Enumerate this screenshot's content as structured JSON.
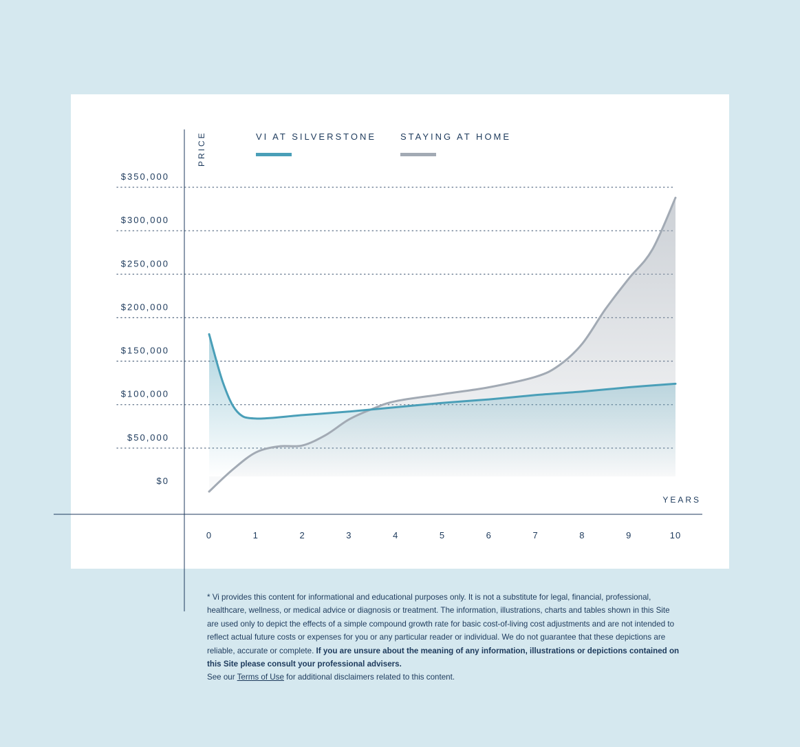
{
  "colors": {
    "background": "#d5e8ef",
    "card": "#ffffff",
    "text": "#1d3a5c",
    "series_vi": "#4a9fb8",
    "series_home": "#a2aab4",
    "gridline": "#5a6e86"
  },
  "chart_data": {
    "type": "line",
    "xlabel": "YEARS",
    "ylabel": "PRICE",
    "x": [
      0,
      1,
      2,
      3,
      4,
      5,
      6,
      7,
      8,
      9,
      10
    ],
    "x_tick_labels": [
      "0",
      "1",
      "2",
      "3",
      "4",
      "5",
      "6",
      "7",
      "8",
      "9",
      "10"
    ],
    "y_ticks": [
      0,
      50000,
      100000,
      150000,
      200000,
      250000,
      300000,
      350000
    ],
    "y_tick_labels": [
      "$0",
      "$50,000",
      "$100,000",
      "$150,000",
      "$200,000",
      "$250,000",
      "$300,000",
      "$350,000"
    ],
    "xlim": [
      0,
      10
    ],
    "ylim": [
      0,
      350000
    ],
    "grid": "horizontal-dotted",
    "legend_position": "top",
    "series": [
      {
        "name": "VI AT SILVERSTONE",
        "color": "#4a9fb8",
        "x": [
          0,
          0.3,
          0.6,
          1,
          2,
          3,
          4,
          5,
          6,
          7,
          8,
          9,
          10
        ],
        "values": [
          181000,
          125000,
          92000,
          84000,
          88000,
          92000,
          97000,
          102000,
          106000,
          111000,
          115000,
          120000,
          124000
        ]
      },
      {
        "name": "STAYING AT HOME",
        "color": "#a2aab4",
        "x": [
          0,
          0.5,
          1,
          1.5,
          2,
          2.5,
          3,
          3.5,
          4,
          5,
          6,
          7,
          7.5,
          8,
          8.5,
          9,
          9.5,
          10
        ],
        "values": [
          0,
          25000,
          45000,
          52000,
          53000,
          65000,
          83000,
          95000,
          104000,
          112000,
          120000,
          132000,
          145000,
          170000,
          210000,
          245000,
          278000,
          338000
        ]
      }
    ]
  },
  "disclaimer": {
    "normal": "* Vi provides this content for informational and educational purposes only. It is not a substitute for legal, financial, professional, healthcare, wellness, or medical advice or diagnosis or treatment. The information, illustrations, charts and tables shown in this Site are used only to depict the effects of a simple compound growth rate for basic cost-of-living cost adjustments and are not intended to reflect actual future costs or expenses for you or any particular reader or individual. We do not guarantee that these depictions are reliable, accurate or complete.",
    "bold": "If you are unsure about the meaning of any information, illustrations or depictions contained on this Site please consult your professional advisers.",
    "see_prefix": "See our",
    "terms_link": "Terms of Use",
    "see_suffix": "for additional disclaimers related to this content."
  }
}
